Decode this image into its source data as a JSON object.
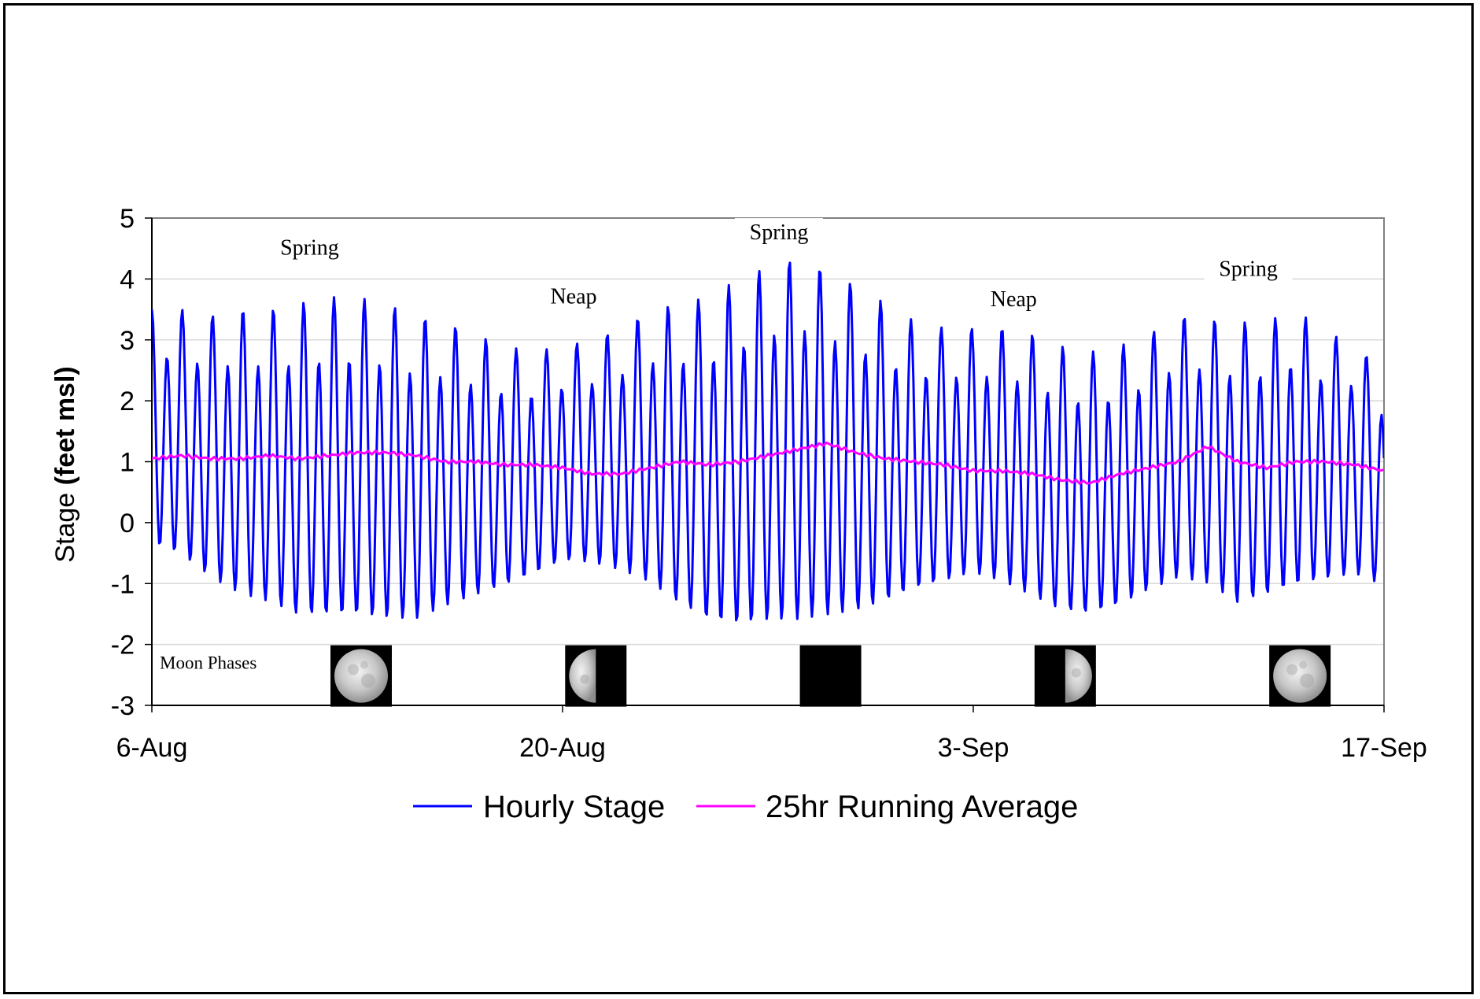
{
  "chart_data": {
    "type": "line",
    "title": "",
    "xlabel": "",
    "ylabel_main": "Stage",
    "ylabel_unit": "(feet msl)",
    "x_ticks": [
      "6-Aug",
      "20-Aug",
      "3-Sep",
      "17-Sep"
    ],
    "x_range": [
      "6-Aug",
      "17-Sep"
    ],
    "y_ticks": [
      "5",
      "4",
      "3",
      "2",
      "1",
      "0",
      "-1",
      "-2",
      "-3"
    ],
    "ylim": [
      -3,
      5
    ],
    "grid": "horizontal",
    "legend_position": "bottom",
    "series": [
      {
        "name": "Hourly Stage",
        "color": "#0000ff",
        "sampling": "hourly (approx. 2 tidal cycles per day)",
        "daily_high_tide": [
          {
            "date": "6-Aug",
            "value": 3.5
          },
          {
            "date": "7-Aug",
            "value": 3.5
          },
          {
            "date": "8-Aug",
            "value": 3.4
          },
          {
            "date": "9-Aug",
            "value": 3.5
          },
          {
            "date": "10-Aug",
            "value": 3.5
          },
          {
            "date": "11-Aug",
            "value": 3.6
          },
          {
            "date": "12-Aug",
            "value": 3.7
          },
          {
            "date": "13-Aug",
            "value": 3.7
          },
          {
            "date": "14-Aug",
            "value": 3.6
          },
          {
            "date": "15-Aug",
            "value": 3.4
          },
          {
            "date": "16-Aug",
            "value": 3.3
          },
          {
            "date": "17-Aug",
            "value": 3.1
          },
          {
            "date": "18-Aug",
            "value": 2.9
          },
          {
            "date": "19-Aug",
            "value": 2.8
          },
          {
            "date": "20-Aug",
            "value": 2.9
          },
          {
            "date": "21-Aug",
            "value": 3.0
          },
          {
            "date": "22-Aug",
            "value": 3.2
          },
          {
            "date": "23-Aug",
            "value": 3.5
          },
          {
            "date": "24-Aug",
            "value": 3.6
          },
          {
            "date": "25-Aug",
            "value": 3.7
          },
          {
            "date": "26-Aug",
            "value": 4.0
          },
          {
            "date": "27-Aug",
            "value": 4.2
          },
          {
            "date": "28-Aug",
            "value": 4.35
          },
          {
            "date": "29-Aug",
            "value": 4.15
          },
          {
            "date": "30-Aug",
            "value": 3.9
          },
          {
            "date": "31-Aug",
            "value": 3.6
          },
          {
            "date": "1-Sep",
            "value": 3.3
          },
          {
            "date": "2-Sep",
            "value": 3.2
          },
          {
            "date": "3-Sep",
            "value": 3.2
          },
          {
            "date": "4-Sep",
            "value": 3.2
          },
          {
            "date": "5-Sep",
            "value": 3.1
          },
          {
            "date": "6-Sep",
            "value": 2.9
          },
          {
            "date": "7-Sep",
            "value": 2.8
          },
          {
            "date": "8-Sep",
            "value": 2.9
          },
          {
            "date": "9-Sep",
            "value": 3.1
          },
          {
            "date": "10-Sep",
            "value": 3.4
          },
          {
            "date": "11-Sep",
            "value": 3.35
          },
          {
            "date": "12-Sep",
            "value": 3.3
          },
          {
            "date": "13-Sep",
            "value": 3.3
          },
          {
            "date": "14-Sep",
            "value": 3.5
          },
          {
            "date": "15-Sep",
            "value": 3.1
          },
          {
            "date": "16-Sep",
            "value": 3.0
          },
          {
            "date": "17-Sep",
            "value": 2.4
          }
        ],
        "daily_low_tide": [
          {
            "date": "6-Aug",
            "value": -0.7
          },
          {
            "date": "7-Aug",
            "value": -0.9
          },
          {
            "date": "8-Aug",
            "value": -1.3
          },
          {
            "date": "9-Aug",
            "value": -1.6
          },
          {
            "date": "10-Aug",
            "value": -1.75
          },
          {
            "date": "11-Aug",
            "value": -2.0
          },
          {
            "date": "12-Aug",
            "value": -2.0
          },
          {
            "date": "13-Aug",
            "value": -2.0
          },
          {
            "date": "14-Aug",
            "value": -2.05
          },
          {
            "date": "15-Aug",
            "value": -2.05
          },
          {
            "date": "16-Aug",
            "value": -1.8
          },
          {
            "date": "17-Aug",
            "value": -1.6
          },
          {
            "date": "18-Aug",
            "value": -1.4
          },
          {
            "date": "19-Aug",
            "value": -1.2
          },
          {
            "date": "20-Aug",
            "value": -0.95
          },
          {
            "date": "21-Aug",
            "value": -1.0
          },
          {
            "date": "22-Aug",
            "value": -1.15
          },
          {
            "date": "23-Aug",
            "value": -1.4
          },
          {
            "date": "24-Aug",
            "value": -1.8
          },
          {
            "date": "25-Aug",
            "value": -2.1
          },
          {
            "date": "26-Aug",
            "value": -2.2
          },
          {
            "date": "27-Aug",
            "value": -2.15
          },
          {
            "date": "28-Aug",
            "value": -2.15
          },
          {
            "date": "29-Aug",
            "value": -2.05
          },
          {
            "date": "30-Aug",
            "value": -1.95
          },
          {
            "date": "31-Aug",
            "value": -1.75
          },
          {
            "date": "1-Sep",
            "value": -1.5
          },
          {
            "date": "2-Sep",
            "value": -1.35
          },
          {
            "date": "3-Sep",
            "value": -1.2
          },
          {
            "date": "4-Sep",
            "value": -1.35
          },
          {
            "date": "5-Sep",
            "value": -1.6
          },
          {
            "date": "6-Sep",
            "value": -1.85
          },
          {
            "date": "7-Sep",
            "value": -1.9
          },
          {
            "date": "8-Sep",
            "value": -1.75
          },
          {
            "date": "9-Sep",
            "value": -1.5
          },
          {
            "date": "10-Sep",
            "value": -1.3
          },
          {
            "date": "11-Sep",
            "value": -1.4
          },
          {
            "date": "12-Sep",
            "value": -1.75
          },
          {
            "date": "13-Sep",
            "value": -1.6
          },
          {
            "date": "14-Sep",
            "value": -1.45
          },
          {
            "date": "15-Sep",
            "value": -1.3
          },
          {
            "date": "16-Sep",
            "value": -1.2
          },
          {
            "date": "17-Sep",
            "value": -1.35
          }
        ]
      },
      {
        "name": "25hr Running Average",
        "color": "#ff00ff",
        "points": [
          {
            "date": "6-Aug",
            "value": 1.05
          },
          {
            "date": "7-Aug",
            "value": 1.1
          },
          {
            "date": "8-Aug",
            "value": 1.05
          },
          {
            "date": "9-Aug",
            "value": 1.05
          },
          {
            "date": "10-Aug",
            "value": 1.1
          },
          {
            "date": "11-Aug",
            "value": 1.05
          },
          {
            "date": "12-Aug",
            "value": 1.1
          },
          {
            "date": "13-Aug",
            "value": 1.15
          },
          {
            "date": "14-Aug",
            "value": 1.15
          },
          {
            "date": "15-Aug",
            "value": 1.1
          },
          {
            "date": "16-Aug",
            "value": 1.0
          },
          {
            "date": "17-Aug",
            "value": 1.0
          },
          {
            "date": "18-Aug",
            "value": 0.95
          },
          {
            "date": "19-Aug",
            "value": 0.95
          },
          {
            "date": "20-Aug",
            "value": 0.9
          },
          {
            "date": "21-Aug",
            "value": 0.8
          },
          {
            "date": "22-Aug",
            "value": 0.8
          },
          {
            "date": "23-Aug",
            "value": 0.9
          },
          {
            "date": "24-Aug",
            "value": 1.0
          },
          {
            "date": "25-Aug",
            "value": 0.95
          },
          {
            "date": "26-Aug",
            "value": 1.0
          },
          {
            "date": "27-Aug",
            "value": 1.1
          },
          {
            "date": "28-Aug",
            "value": 1.2
          },
          {
            "date": "29-Aug",
            "value": 1.3
          },
          {
            "date": "30-Aug",
            "value": 1.15
          },
          {
            "date": "31-Aug",
            "value": 1.05
          },
          {
            "date": "1-Sep",
            "value": 1.0
          },
          {
            "date": "2-Sep",
            "value": 0.95
          },
          {
            "date": "3-Sep",
            "value": 0.85
          },
          {
            "date": "4-Sep",
            "value": 0.85
          },
          {
            "date": "5-Sep",
            "value": 0.8
          },
          {
            "date": "6-Sep",
            "value": 0.7
          },
          {
            "date": "7-Sep",
            "value": 0.65
          },
          {
            "date": "8-Sep",
            "value": 0.8
          },
          {
            "date": "9-Sep",
            "value": 0.9
          },
          {
            "date": "10-Sep",
            "value": 1.0
          },
          {
            "date": "11-Sep",
            "value": 1.25
          },
          {
            "date": "12-Sep",
            "value": 1.0
          },
          {
            "date": "13-Sep",
            "value": 0.9
          },
          {
            "date": "14-Sep",
            "value": 1.0
          },
          {
            "date": "15-Sep",
            "value": 1.0
          },
          {
            "date": "16-Sep",
            "value": 0.95
          },
          {
            "date": "17-Sep",
            "value": 0.85
          }
        ]
      }
    ],
    "annotations": [
      {
        "text": "Spring",
        "date": "11-Aug",
        "value": 4.4
      },
      {
        "text": "Neap",
        "date": "20-Aug",
        "value": 3.6
      },
      {
        "text": "Spring",
        "date": "27-Aug",
        "value": 4.65
      },
      {
        "text": "Neap",
        "date": "4-Sep",
        "value": 3.55
      },
      {
        "text": "Spring",
        "date": "12-Sep",
        "value": 4.05
      }
    ],
    "moon_phases_label": "Moon Phases",
    "moon_phases": [
      {
        "date": "13-Aug",
        "phase": "full-moon-icon"
      },
      {
        "date": "21-Aug",
        "phase": "last-quarter-moon-icon"
      },
      {
        "date": "29-Aug",
        "phase": "new-moon-icon"
      },
      {
        "date": "6-Sep",
        "phase": "first-quarter-moon-icon"
      },
      {
        "date": "14-Sep",
        "phase": "full-moon-icon"
      }
    ]
  }
}
